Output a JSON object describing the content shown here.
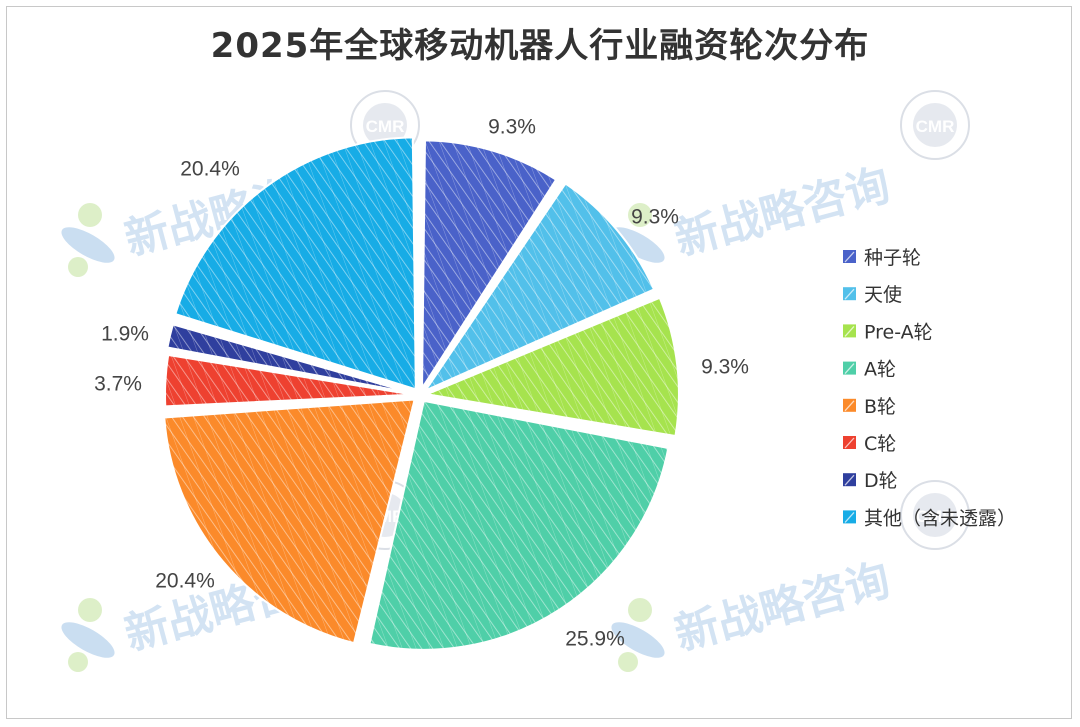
{
  "chart_data": {
    "type": "pie",
    "title": "2025年全球移动机器人行业融资轮次分布",
    "slices": [
      {
        "name": "种子轮",
        "value": 9.3,
        "label": "9.3%",
        "color": "#4a62c9"
      },
      {
        "name": "天使",
        "value": 9.3,
        "label": "9.3%",
        "color": "#52c0ea"
      },
      {
        "name": "Pre-A轮",
        "value": 9.3,
        "label": "9.3%",
        "color": "#a6e34e"
      },
      {
        "name": "A轮",
        "value": 25.9,
        "label": "25.9%",
        "color": "#4fcfa8"
      },
      {
        "name": "B轮",
        "value": 20.4,
        "label": "20.4%",
        "color": "#fb8a2a"
      },
      {
        "name": "C轮",
        "value": 3.7,
        "label": "3.7%",
        "color": "#ee4130"
      },
      {
        "name": "D轮",
        "value": 1.9,
        "label": "1.9%",
        "color": "#2f3f9e"
      },
      {
        "name": "其他（含未透露）",
        "value": 20.4,
        "label": "20.4%",
        "color": "#17ace6"
      }
    ],
    "start_angle_deg": 0,
    "direction": "clockwise",
    "legend_position": "right"
  },
  "watermark": {
    "text": "新战略咨询",
    "seal_text": "CMR",
    "colors": {
      "blue": "#9fc3e6",
      "green": "#cfe8b0"
    }
  }
}
